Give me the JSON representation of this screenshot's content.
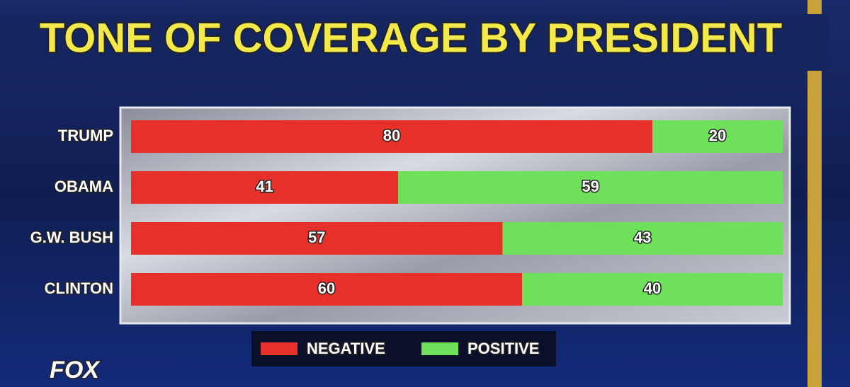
{
  "chart_data": {
    "type": "bar",
    "orientation": "horizontal",
    "stacked": true,
    "title": "TONE OF COVERAGE BY PRESIDENT",
    "categories": [
      "TRUMP",
      "OBAMA",
      "G.W. BUSH",
      "CLINTON"
    ],
    "series": [
      {
        "name": "NEGATIVE",
        "color": "#e8302a",
        "values": [
          80,
          41,
          57,
          60
        ]
      },
      {
        "name": "POSITIVE",
        "color": "#6ee05a",
        "values": [
          20,
          59,
          43,
          40
        ]
      }
    ],
    "logo": "FOX"
  }
}
